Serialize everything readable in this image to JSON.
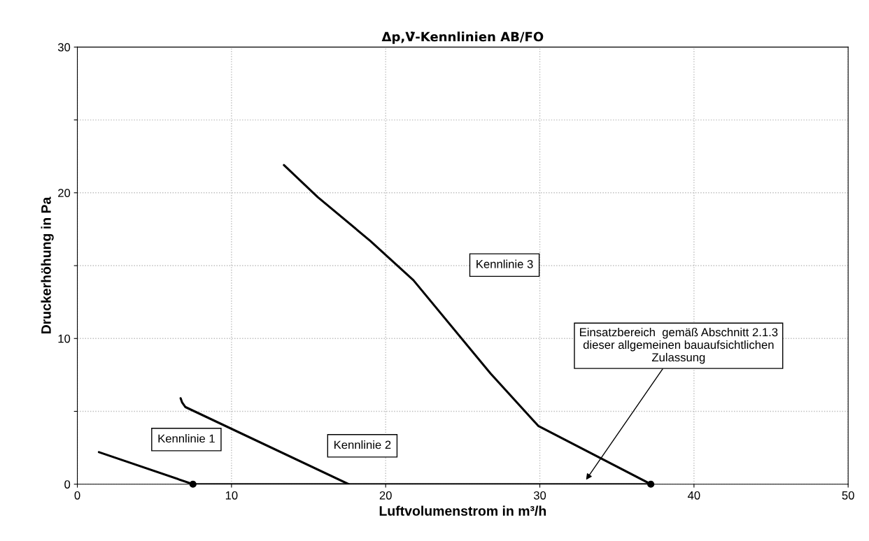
{
  "chart_data": {
    "type": "line",
    "title": "Δp,V̇-Kennlinien AB/FO",
    "xlabel": "Luftvolumenstrom in m³/h",
    "ylabel": "Druckerhöhung in Pa",
    "xlim": [
      0,
      50
    ],
    "xticks": [
      0,
      10,
      20,
      30,
      40,
      50
    ],
    "ylim": [
      0,
      30
    ],
    "yticks": [
      0,
      {
        "value": 5,
        "label": null
      },
      10,
      {
        "value": 15,
        "label": null
      },
      20,
      {
        "value": 25,
        "label": null
      },
      30
    ],
    "grid": true,
    "legend": false,
    "marker": "none",
    "line_style": "solid",
    "series": [
      {
        "name": "Kennlinie 1",
        "color": "#000000",
        "x": [
          1.4,
          7.5
        ],
        "values": [
          2.2,
          0
        ]
      },
      {
        "name": "Kennlinie 2",
        "color": "#000000",
        "x": [
          6.7,
          6.8,
          7.0,
          17.6
        ],
        "values": [
          5.9,
          5.6,
          5.3,
          0
        ]
      },
      {
        "name": "Kennlinie 3",
        "color": "#000000",
        "x": [
          13.4,
          15.6,
          19.0,
          21.8,
          26.8,
          29.9,
          37.2
        ],
        "values": [
          21.9,
          19.7,
          16.7,
          14.0,
          7.6,
          4.0,
          0
        ]
      },
      {
        "color": "#000000",
        "x": [
          7.5,
          37.2
        ],
        "values": [
          0,
          0
        ]
      },
      {
        "type": "scatter",
        "marker": "circle",
        "color": "#000000",
        "x": [
          7.5,
          37.2
        ],
        "values": [
          0,
          0
        ]
      }
    ],
    "annotations": [
      {
        "text": "Einsatzbereich  gemäß Abschnitt 2.1.3\ndieser allgemeinen bauaufsichtlichen\nZulassung",
        "x": 33,
        "y": 0.3
      }
    ]
  }
}
